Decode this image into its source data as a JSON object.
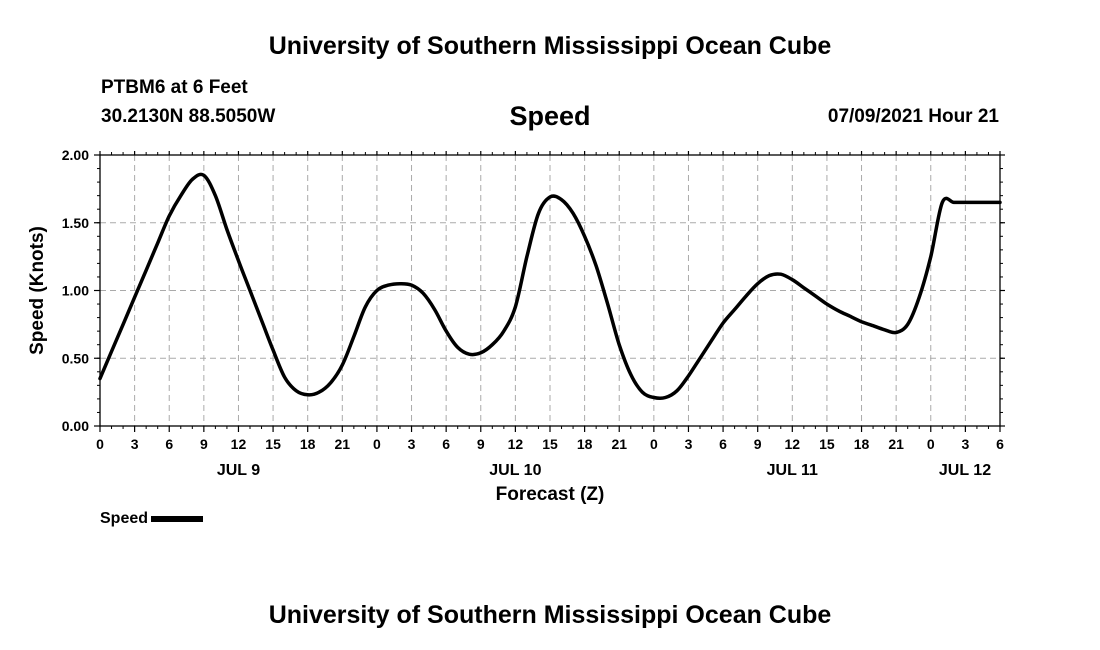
{
  "page": {
    "title_top": "University of Southern Mississippi Ocean Cube",
    "title_bottom": "University of Southern Mississippi Ocean Cube",
    "station": "PTBM6 at 6 Feet",
    "coordinates": "30.2130N  88.5050W",
    "datetime": "07/09/2021 Hour 21"
  },
  "chart_data": {
    "type": "line",
    "title": "Speed",
    "xlabel": "Forecast (Z)",
    "ylabel": "Speed (Knots)",
    "ylim": [
      0,
      2
    ],
    "yticks": [
      0,
      0.5,
      1.0,
      1.5,
      2.0
    ],
    "ytick_labels": [
      "0.00",
      "0.50",
      "1.00",
      "1.50",
      "2.00"
    ],
    "xlim": [
      0,
      78
    ],
    "x_units": "hours since JUL 9 00Z",
    "xtick_labels": [
      "0",
      "3",
      "6",
      "9",
      "12",
      "15",
      "18",
      "21",
      "0",
      "3",
      "6",
      "9",
      "12",
      "15",
      "18",
      "21",
      "0",
      "3",
      "6",
      "9",
      "12",
      "15",
      "18",
      "21",
      "0",
      "3",
      "6"
    ],
    "day_labels": [
      {
        "label": "JUL 9",
        "hour": 12
      },
      {
        "label": "JUL 10",
        "hour": 36
      },
      {
        "label": "JUL 11",
        "hour": 60
      },
      {
        "label": "JUL 12",
        "hour": 78
      }
    ],
    "grid": true,
    "legend": {
      "label": "Speed",
      "position": "bottom-left"
    },
    "series": [
      {
        "name": "Speed",
        "color": "#000000",
        "x": [
          0,
          1,
          2,
          3,
          4,
          5,
          6,
          7,
          8,
          9,
          10,
          11,
          12,
          13,
          14,
          15,
          16,
          17,
          18,
          19,
          20,
          21,
          22,
          23,
          24,
          25,
          26,
          27,
          28,
          29,
          30,
          31,
          32,
          33,
          34,
          35,
          36,
          37,
          38,
          39,
          40,
          41,
          42,
          43,
          44,
          45,
          46,
          47,
          48,
          49,
          50,
          51,
          52,
          53,
          54,
          55,
          56,
          57,
          58,
          59,
          60,
          61,
          62,
          63,
          64,
          65,
          66,
          67,
          68,
          69,
          70,
          71,
          72,
          73,
          74,
          75,
          76,
          77,
          78
        ],
        "values": [
          0.35,
          0.55,
          0.75,
          0.95,
          1.15,
          1.35,
          1.55,
          1.7,
          1.82,
          1.85,
          1.7,
          1.45,
          1.22,
          1.0,
          0.78,
          0.56,
          0.36,
          0.26,
          0.23,
          0.25,
          0.32,
          0.45,
          0.66,
          0.88,
          1.0,
          1.04,
          1.05,
          1.04,
          0.98,
          0.86,
          0.7,
          0.58,
          0.53,
          0.54,
          0.6,
          0.7,
          0.88,
          1.25,
          1.57,
          1.69,
          1.67,
          1.57,
          1.4,
          1.18,
          0.9,
          0.6,
          0.38,
          0.25,
          0.21,
          0.21,
          0.26,
          0.37,
          0.5,
          0.63,
          0.76,
          0.86,
          0.96,
          1.05,
          1.11,
          1.12,
          1.08,
          1.02,
          0.96,
          0.9,
          0.85,
          0.81,
          0.77,
          0.74,
          0.71,
          0.69,
          0.75,
          0.95,
          1.25,
          1.65,
          1.65,
          1.65,
          1.65,
          1.65,
          1.65
        ]
      }
    ]
  }
}
